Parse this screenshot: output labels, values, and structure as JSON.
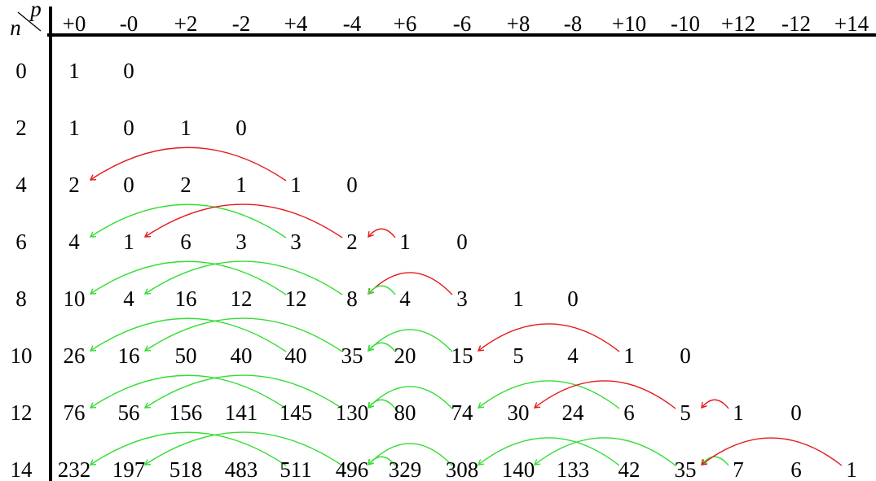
{
  "corner": {
    "row_symbol": "n",
    "column_symbol": "p"
  },
  "columns": [
    "+0",
    "-0",
    "+2",
    "-2",
    "+4",
    "-4",
    "+6",
    "-6",
    "+8",
    "-8",
    "+10",
    "-10",
    "+12",
    "-12",
    "+14"
  ],
  "rows": [
    {
      "n": "0",
      "values": [
        "1",
        "0"
      ]
    },
    {
      "n": "2",
      "values": [
        "1",
        "0",
        "1",
        "0"
      ]
    },
    {
      "n": "4",
      "values": [
        "2",
        "0",
        "2",
        "1",
        "1",
        "0"
      ]
    },
    {
      "n": "6",
      "values": [
        "4",
        "1",
        "6",
        "3",
        "3",
        "2",
        "1",
        "0"
      ]
    },
    {
      "n": "8",
      "values": [
        "10",
        "4",
        "16",
        "12",
        "12",
        "8",
        "4",
        "3",
        "1",
        "0"
      ]
    },
    {
      "n": "10",
      "values": [
        "26",
        "16",
        "50",
        "40",
        "40",
        "35",
        "20",
        "15",
        "5",
        "4",
        "1",
        "0"
      ]
    },
    {
      "n": "12",
      "values": [
        "76",
        "56",
        "156",
        "141",
        "145",
        "130",
        "80",
        "74",
        "30",
        "24",
        "6",
        "5",
        "1",
        "0"
      ]
    },
    {
      "n": "14",
      "values": [
        "232",
        "197",
        "518",
        "483",
        "511",
        "496",
        "329",
        "308",
        "140",
        "133",
        "42",
        "35",
        "7",
        "6",
        "1"
      ]
    }
  ],
  "colors": {
    "red_arrow": "#e41a1c",
    "green_arrow": "#33dd33",
    "rule": "#000000"
  },
  "arrows": [
    {
      "row": 2,
      "from": 4,
      "to": 0,
      "color": "red"
    },
    {
      "row": 3,
      "from": 4,
      "to": 0,
      "color": "green"
    },
    {
      "row": 3,
      "from": 5,
      "to": 1,
      "color": "red"
    },
    {
      "row": 3,
      "from": 6,
      "to": 5,
      "color": "red"
    },
    {
      "row": 4,
      "from": 4,
      "to": 0,
      "color": "green"
    },
    {
      "row": 4,
      "from": 5,
      "to": 1,
      "color": "green"
    },
    {
      "row": 4,
      "from": 7,
      "to": 5,
      "color": "red"
    },
    {
      "row": 4,
      "from": 6,
      "to": 5,
      "color": "green"
    },
    {
      "row": 5,
      "from": 4,
      "to": 0,
      "color": "green"
    },
    {
      "row": 5,
      "from": 5,
      "to": 1,
      "color": "green"
    },
    {
      "row": 5,
      "from": 7,
      "to": 5,
      "color": "green"
    },
    {
      "row": 5,
      "from": 6,
      "to": 5,
      "color": "green"
    },
    {
      "row": 5,
      "from": 10,
      "to": 7,
      "color": "red"
    },
    {
      "row": 6,
      "from": 4,
      "to": 0,
      "color": "green"
    },
    {
      "row": 6,
      "from": 5,
      "to": 1,
      "color": "green"
    },
    {
      "row": 6,
      "from": 7,
      "to": 5,
      "color": "green"
    },
    {
      "row": 6,
      "from": 6,
      "to": 5,
      "color": "green"
    },
    {
      "row": 6,
      "from": 10,
      "to": 7,
      "color": "green"
    },
    {
      "row": 6,
      "from": 11,
      "to": 8,
      "color": "red"
    },
    {
      "row": 6,
      "from": 12,
      "to": 11,
      "color": "red"
    },
    {
      "row": 7,
      "from": 4,
      "to": 0,
      "color": "green"
    },
    {
      "row": 7,
      "from": 5,
      "to": 1,
      "color": "green"
    },
    {
      "row": 7,
      "from": 7,
      "to": 5,
      "color": "green"
    },
    {
      "row": 7,
      "from": 6,
      "to": 5,
      "color": "green"
    },
    {
      "row": 7,
      "from": 10,
      "to": 7,
      "color": "green"
    },
    {
      "row": 7,
      "from": 11,
      "to": 8,
      "color": "green"
    },
    {
      "row": 7,
      "from": 12,
      "to": 11,
      "color": "green"
    },
    {
      "row": 7,
      "from": 14,
      "to": 11,
      "color": "red"
    }
  ]
}
